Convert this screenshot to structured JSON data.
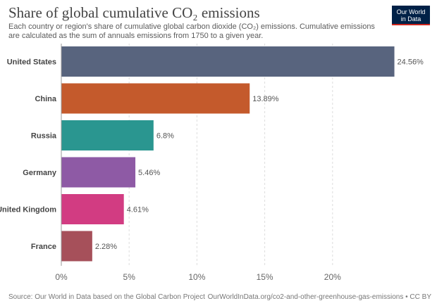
{
  "header": {
    "title": "Share of global cumulative CO₂ emissions",
    "subtitle": "Each country or region's share of cumulative global carbon dioxide (CO₂) emissions. Cumulative emissions are calculated as the sum of annuals emissions from 1750 to a given year."
  },
  "logo": {
    "line1": "Our World",
    "line2": "in Data"
  },
  "footer": {
    "source": "Source: Our World in Data based on the Global Carbon Project",
    "url": "OurWorldInData.org/co2-and-other-greenhouse-gas-emissions • CC BY"
  },
  "chart_data": {
    "type": "bar",
    "orientation": "horizontal",
    "title": "Share of global cumulative CO₂ emissions",
    "categories": [
      "United States",
      "China",
      "Russia",
      "Germany",
      "United Kingdom",
      "France"
    ],
    "values": [
      24.56,
      13.89,
      6.8,
      5.46,
      4.61,
      2.28
    ],
    "value_labels": [
      "24.56%",
      "13.89%",
      "6.8%",
      "5.46%",
      "4.61%",
      "2.28%"
    ],
    "colors": [
      "#58647e",
      "#c45a2c",
      "#2a9690",
      "#8e5aa5",
      "#d23c82",
      "#a6505a"
    ],
    "xlim": [
      0,
      25
    ],
    "xticks": [
      0,
      5,
      10,
      15,
      20
    ],
    "xtick_labels": [
      "0%",
      "5%",
      "10%",
      "15%",
      "20%"
    ],
    "grid": true
  }
}
